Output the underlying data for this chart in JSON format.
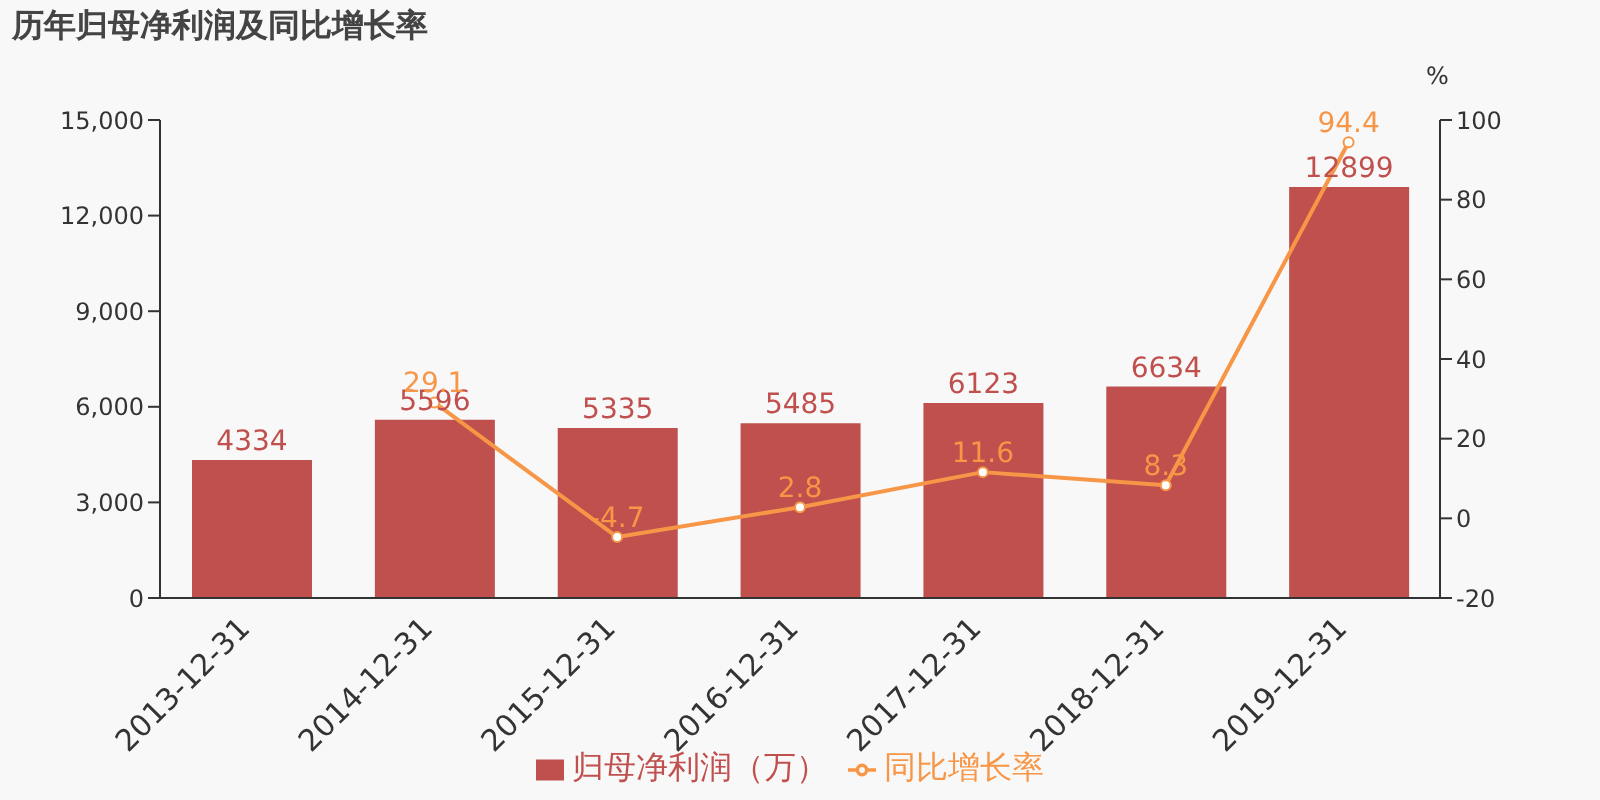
{
  "chart_data": {
    "type": "bar",
    "title": "历年归母净利润及同比增长率",
    "categories": [
      "2013-12-31",
      "2014-12-31",
      "2015-12-31",
      "2016-12-31",
      "2017-12-31",
      "2018-12-31",
      "2019-12-31"
    ],
    "series": [
      {
        "name": "归母净利润（万）",
        "color": "#c0504d",
        "values": [
          4334,
          5596,
          5335,
          5485,
          6123,
          6634,
          12899
        ]
      },
      {
        "name": "同比增长率",
        "type": "line",
        "axis": "y2",
        "color": "#f79646",
        "values": [
          null,
          29.1,
          -4.7,
          2.8,
          11.6,
          8.3,
          94.4
        ]
      }
    ],
    "ylim": [
      0,
      15000
    ],
    "yticks": [
      0,
      {
        "value": 3000,
        "label": "3,000"
      },
      {
        "value": 6000,
        "label": "6,000"
      },
      {
        "value": 9000,
        "label": "9,000"
      },
      {
        "value": 12000,
        "label": "12,000"
      },
      {
        "value": 15000,
        "label": "15,000"
      }
    ],
    "y2lim": [
      -20,
      100
    ],
    "y2ticks": [
      -20,
      0,
      20,
      40,
      60,
      80,
      100
    ],
    "y2label": "%",
    "data_labels": true,
    "legend": "bottom",
    "grid": false,
    "marker": "circle"
  }
}
